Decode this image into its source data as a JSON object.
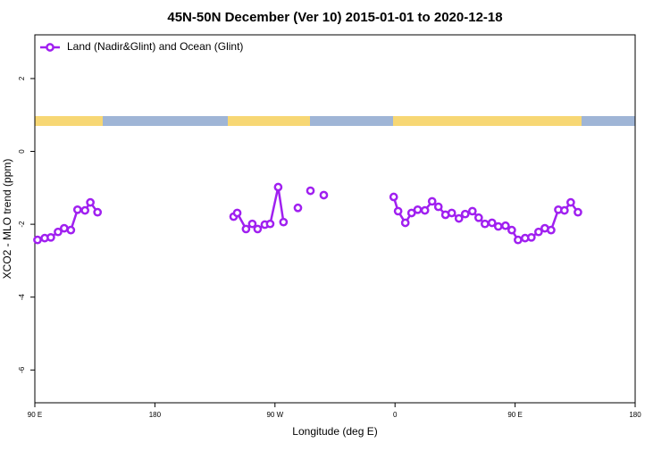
{
  "chart_data": {
    "type": "line",
    "title": "45N-50N December (Ver 10)   2015-01-01 to 2020-12-18",
    "x_label": "Longitude (deg E)",
    "y_label": "XCO2 - MLO trend (ppm)",
    "xlim": [
      90,
      540
    ],
    "xticks": [
      {
        "value": 90,
        "label": "90 E"
      },
      180,
      {
        "value": 270,
        "label": "90 W"
      },
      {
        "value": 360,
        "label": "0"
      },
      {
        "value": 450,
        "label": "90 E"
      },
      {
        "value": 540,
        "label": "180"
      }
    ],
    "ylim": [
      -6.9,
      3.2
    ],
    "yticks": [
      -6,
      -4,
      -2,
      0,
      2
    ],
    "legend": "top-left",
    "series": [
      {
        "name": "Land (Nadir&Glint) and Ocean (Glint)",
        "color": "#a020f0",
        "x": [
          92,
          97.4,
          102,
          107.4,
          112,
          117,
          122,
          127.6,
          131.6,
          137,
          null,
          239,
          241.7,
          248.3,
          253,
          257,
          262.4,
          266.4,
          272.4,
          276.4,
          null,
          287.2,
          null,
          296.6,
          null,
          306.6,
          null,
          359,
          362.3,
          367.7,
          372.4,
          377,
          382.4,
          387.8,
          392.5,
          397.8,
          402.5,
          407.9,
          412.6,
          418,
          422.7,
          427.4,
          432.7,
          437.4,
          442.8,
          447.5,
          452.2,
          457.5,
          462.2,
          467.6,
          472.3,
          477,
          482.4,
          487,
          491.7,
          497.1
        ],
        "values": [
          -2.43,
          -2.38,
          -2.36,
          -2.21,
          -2.11,
          -2.16,
          -1.6,
          -1.62,
          -1.4,
          -1.67,
          null,
          -1.79,
          -1.69,
          -2.13,
          -1.99,
          -2.13,
          -2.01,
          -1.99,
          -0.98,
          -1.94,
          null,
          -1.55,
          null,
          -1.08,
          null,
          -1.2,
          null,
          -1.25,
          -1.64,
          -1.96,
          -1.69,
          -1.6,
          -1.62,
          -1.37,
          -1.52,
          -1.74,
          -1.69,
          -1.84,
          -1.72,
          -1.64,
          -1.82,
          -1.99,
          -1.96,
          -2.06,
          -2.04,
          -2.16,
          -2.43,
          -2.38,
          -2.36,
          -2.21,
          -2.11,
          -2.16,
          -1.6,
          -1.62,
          -1.4,
          -1.67
        ]
      }
    ]
  }
}
